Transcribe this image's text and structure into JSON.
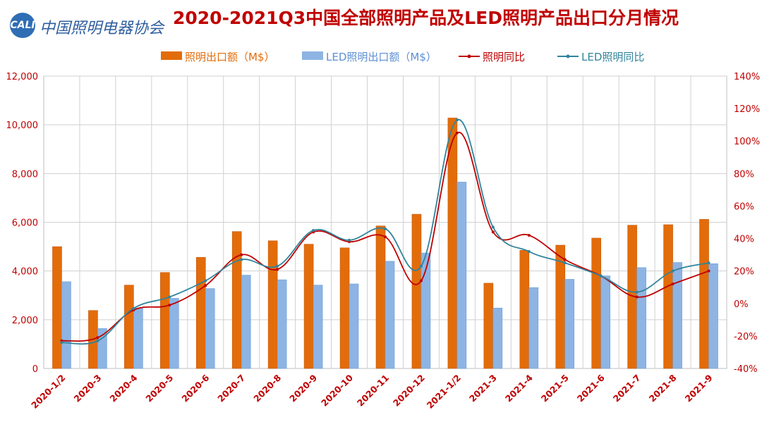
{
  "header": {
    "logo_text": "中国照明电器协会",
    "logo_badge": "CALI"
  },
  "chart_data": {
    "type": "bar",
    "title": "2020-2021Q3中国全部照明产品及LED照明产品出口分月情况",
    "categories": [
      "2020-1/2",
      "2020-3",
      "2020-4",
      "2020-5",
      "2020-6",
      "2020-7",
      "2020-8",
      "2020-9",
      "2020-10",
      "2020-11",
      "2020-12",
      "2021-1/2",
      "2021-3",
      "2021-4",
      "2021-5",
      "2021-6",
      "2021-7",
      "2021-8",
      "2021-9"
    ],
    "series": [
      {
        "name": "照明出口额（M$）",
        "kind": "bar",
        "axis": "left",
        "color": "#e36c0a",
        "values": [
          5000,
          2380,
          3420,
          3940,
          4560,
          5620,
          5240,
          5100,
          4950,
          5850,
          6330,
          10280,
          3500,
          4850,
          5060,
          5350,
          5880,
          5900,
          6120
        ]
      },
      {
        "name": "LED照明出口额（M$）",
        "kind": "bar",
        "axis": "left",
        "color": "#8eb4e3",
        "values": [
          3560,
          1640,
          2480,
          2880,
          3280,
          3830,
          3640,
          3420,
          3470,
          4400,
          4740,
          7650,
          2480,
          3320,
          3660,
          3800,
          4140,
          4350,
          4300
        ]
      },
      {
        "name": "照明同比",
        "kind": "line",
        "axis": "right",
        "color": "#c00000",
        "values": [
          -23,
          -21,
          -4,
          -1,
          11,
          30,
          21,
          44,
          38,
          41,
          14,
          105,
          44,
          42,
          27,
          17,
          4,
          12,
          20
        ]
      },
      {
        "name": "LED照明同比",
        "kind": "line",
        "axis": "right",
        "color": "#31849b",
        "values": [
          -24,
          -23,
          -3,
          4,
          14,
          27,
          23,
          45,
          39,
          46,
          23,
          113,
          47,
          32,
          25,
          17,
          7,
          20,
          25
        ]
      }
    ],
    "left_axis": {
      "min": 0,
      "max": 12000,
      "step": 2000,
      "ticks": [
        "0",
        "2,000",
        "4,000",
        "6,000",
        "8,000",
        "10,000",
        "12,000"
      ]
    },
    "right_axis": {
      "min": -40,
      "max": 140,
      "step": 20,
      "ticks": [
        "-40%",
        "-20%",
        "0%",
        "20%",
        "40%",
        "60%",
        "80%",
        "100%",
        "120%",
        "140%"
      ]
    },
    "legend_position": "top-center",
    "grid": true
  }
}
